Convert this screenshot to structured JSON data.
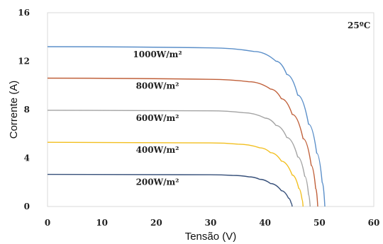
{
  "chart_data": {
    "type": "line",
    "title": "",
    "xlabel": "Tensão (V)",
    "ylabel": "Corrente (A)",
    "xlim": [
      0,
      60
    ],
    "ylim": [
      0,
      16
    ],
    "xticks": [
      0,
      10,
      20,
      30,
      40,
      50,
      60
    ],
    "yticks": [
      0,
      4,
      8,
      12,
      16
    ],
    "grid": false,
    "annotation": "25ºC",
    "series": [
      {
        "name": "1000W/m²",
        "color": "#5b8fc9",
        "isc": 13.2,
        "voc": 51.0,
        "x": [
          0,
          30,
          38,
          42,
          44,
          46,
          48,
          49.5,
          50.5,
          51.0
        ],
        "y": [
          13.2,
          13.1,
          12.8,
          12.0,
          10.9,
          9.2,
          6.8,
          4.4,
          2.0,
          0
        ]
      },
      {
        "name": "800W/m²",
        "color": "#c0603a",
        "isc": 10.6,
        "voc": 49.7,
        "x": [
          0,
          30,
          37,
          41,
          43,
          45,
          47,
          48.5,
          49.3,
          49.7
        ],
        "y": [
          10.6,
          10.5,
          10.3,
          9.7,
          8.9,
          7.6,
          5.6,
          3.4,
          1.5,
          0
        ]
      },
      {
        "name": "600W/m²",
        "color": "#a3a3a3",
        "isc": 7.95,
        "voc": 48.3,
        "x": [
          0,
          30,
          36,
          40,
          42,
          44,
          46,
          47.3,
          48.0,
          48.3
        ],
        "y": [
          7.95,
          7.9,
          7.75,
          7.3,
          6.7,
          5.7,
          4.1,
          2.5,
          1.0,
          0
        ]
      },
      {
        "name": "400W/m²",
        "color": "#f2bf1f",
        "isc": 5.3,
        "voc": 47.0,
        "x": [
          0,
          30,
          35,
          39,
          41,
          43,
          45,
          46.2,
          46.8,
          47.0
        ],
        "y": [
          5.3,
          5.25,
          5.15,
          4.85,
          4.45,
          3.75,
          2.6,
          1.5,
          0.6,
          0
        ]
      },
      {
        "name": "200W/m²",
        "color": "#37507a",
        "isc": 2.65,
        "voc": 45.0,
        "x": [
          0,
          30,
          34,
          37,
          39,
          41,
          43,
          44.3,
          44.8,
          45.0
        ],
        "y": [
          2.65,
          2.62,
          2.57,
          2.45,
          2.25,
          1.9,
          1.3,
          0.7,
          0.3,
          0
        ]
      }
    ]
  }
}
